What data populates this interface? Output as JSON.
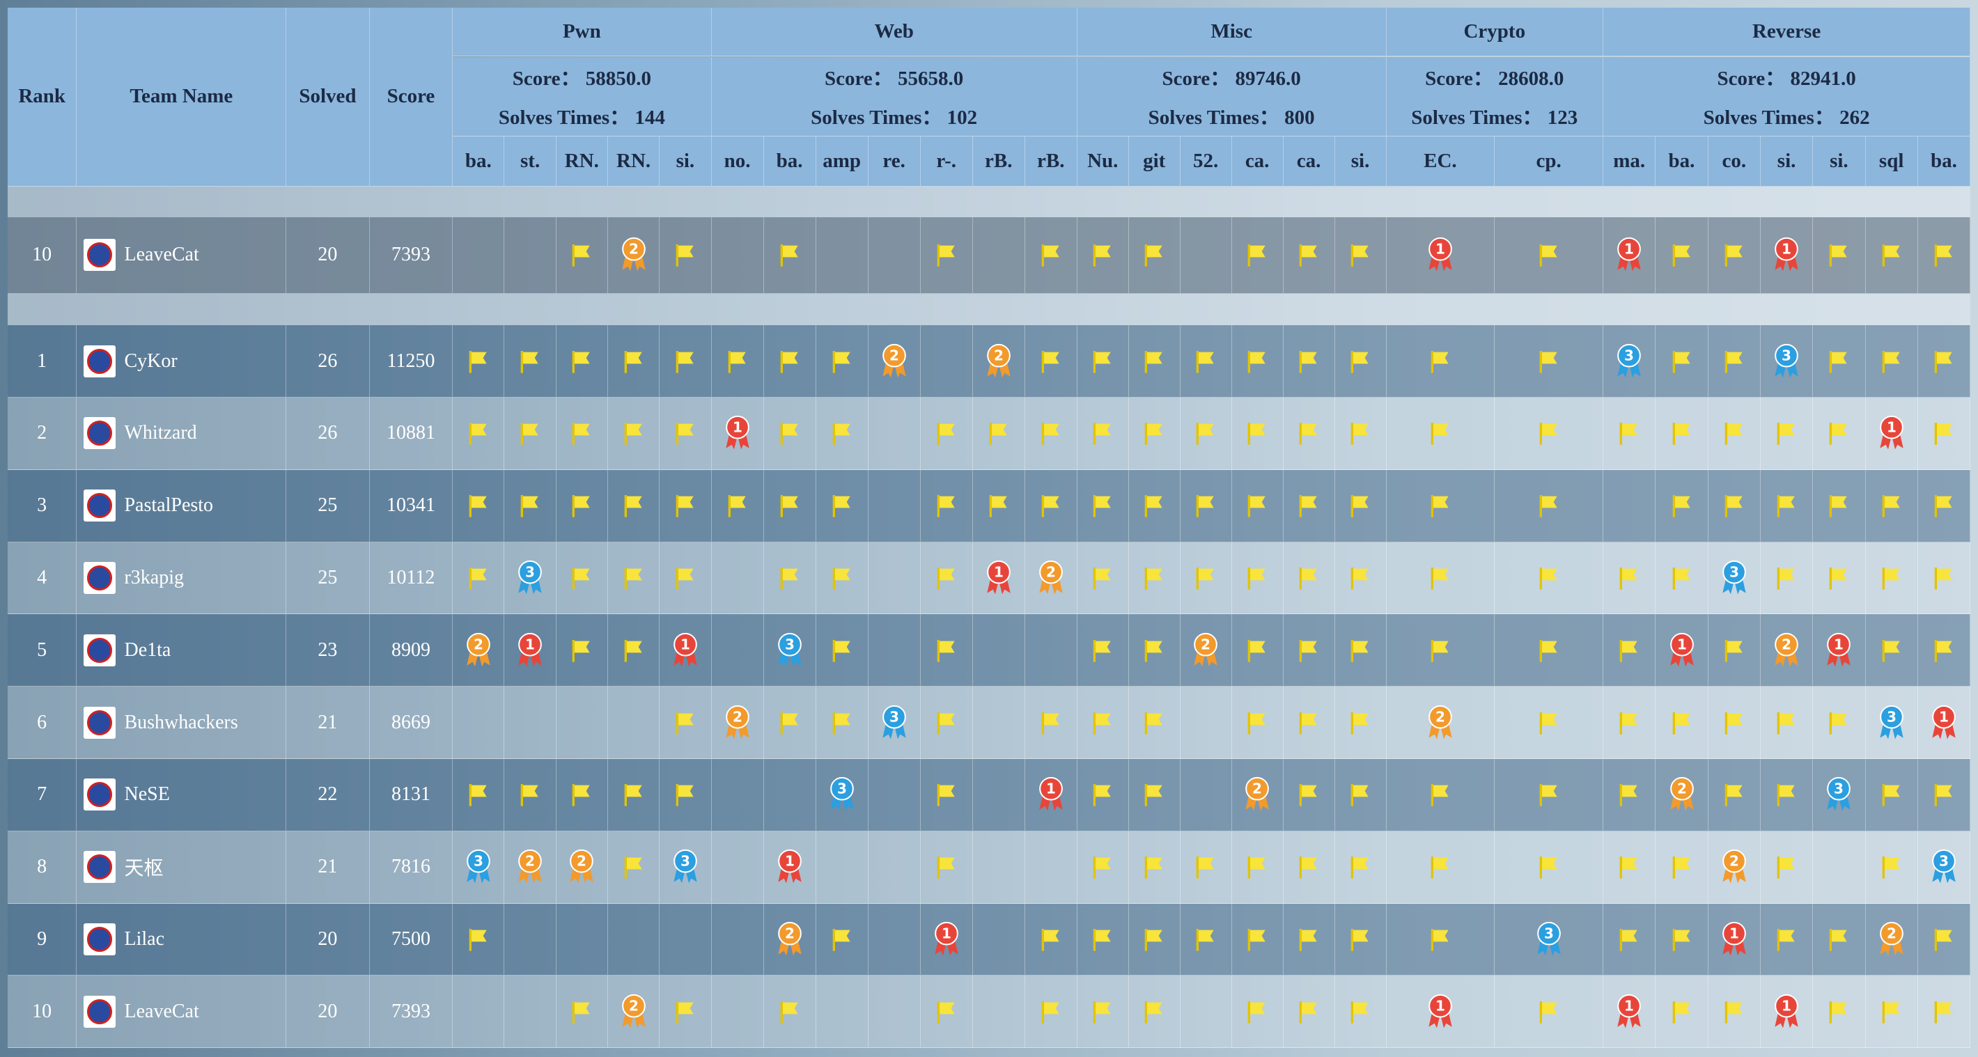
{
  "header": {
    "rank": "Rank",
    "team": "Team Name",
    "solved": "Solved",
    "score": "Score"
  },
  "categories": [
    {
      "name": "Pwn",
      "score": "Score：  58850.0",
      "solves": "Solves Times：  144",
      "challenges": [
        "ba.",
        "st.",
        "RN.",
        "RN.",
        "si."
      ]
    },
    {
      "name": "Web",
      "score": "Score：  55658.0",
      "solves": "Solves Times：  102",
      "challenges": [
        "no.",
        "ba.",
        "amp",
        "re.",
        "r-.",
        "rB.",
        "rB."
      ]
    },
    {
      "name": "Misc",
      "score": "Score：  89746.0",
      "solves": "Solves Times：  800",
      "challenges": [
        "Nu.",
        "git",
        "52.",
        "ca.",
        "ca.",
        "si."
      ]
    },
    {
      "name": "Crypto",
      "score": "Score：  28608.0",
      "solves": "Solves Times：  123",
      "challenges": [
        "EC.",
        "cp."
      ]
    },
    {
      "name": "Reverse",
      "score": "Score：  82941.0",
      "solves": "Solves Times：  262",
      "challenges": [
        "ma.",
        "ba.",
        "co.",
        "si.",
        "si.",
        "sql",
        "ba."
      ]
    }
  ],
  "pinned": {
    "rank": 10,
    "team": "LeaveCat",
    "solved": 20,
    "score": 7393,
    "cells": [
      null,
      null,
      "flag",
      2,
      "flag",
      null,
      "flag",
      null,
      null,
      "flag",
      null,
      "flag",
      "flag",
      "flag",
      null,
      "flag",
      "flag",
      "flag",
      1,
      "flag",
      1,
      "flag",
      "flag",
      1,
      "flag",
      "flag",
      "flag"
    ]
  },
  "rows": [
    {
      "rank": 1,
      "team": "CyKor",
      "solved": 26,
      "score": 11250,
      "cells": [
        "flag",
        "flag",
        "flag",
        "flag",
        "flag",
        "flag",
        "flag",
        "flag",
        2,
        null,
        2,
        "flag",
        "flag",
        "flag",
        "flag",
        "flag",
        "flag",
        "flag",
        "flag",
        "flag",
        3,
        "flag",
        "flag",
        3,
        "flag",
        "flag",
        "flag"
      ]
    },
    {
      "rank": 2,
      "team": "Whitzard",
      "solved": 26,
      "score": 10881,
      "cells": [
        "flag",
        "flag",
        "flag",
        "flag",
        "flag",
        1,
        "flag",
        "flag",
        null,
        "flag",
        "flag",
        "flag",
        "flag",
        "flag",
        "flag",
        "flag",
        "flag",
        "flag",
        "flag",
        "flag",
        "flag",
        "flag",
        "flag",
        "flag",
        "flag",
        1,
        "flag"
      ]
    },
    {
      "rank": 3,
      "team": "PastalPesto",
      "solved": 25,
      "score": 10341,
      "cells": [
        "flag",
        "flag",
        "flag",
        "flag",
        "flag",
        "flag",
        "flag",
        "flag",
        null,
        "flag",
        "flag",
        "flag",
        "flag",
        "flag",
        "flag",
        "flag",
        "flag",
        "flag",
        "flag",
        "flag",
        null,
        "flag",
        "flag",
        "flag",
        "flag",
        "flag",
        "flag"
      ]
    },
    {
      "rank": 4,
      "team": "r3kapig",
      "solved": 25,
      "score": 10112,
      "cells": [
        "flag",
        3,
        "flag",
        "flag",
        "flag",
        null,
        "flag",
        "flag",
        null,
        "flag",
        1,
        2,
        "flag",
        "flag",
        "flag",
        "flag",
        "flag",
        "flag",
        "flag",
        "flag",
        "flag",
        "flag",
        3,
        "flag",
        "flag",
        "flag",
        "flag"
      ]
    },
    {
      "rank": 5,
      "team": "De1ta",
      "solved": 23,
      "score": 8909,
      "cells": [
        2,
        1,
        "flag",
        "flag",
        1,
        null,
        3,
        "flag",
        null,
        "flag",
        null,
        null,
        "flag",
        "flag",
        2,
        "flag",
        "flag",
        "flag",
        "flag",
        "flag",
        "flag",
        1,
        "flag",
        2,
        1,
        "flag",
        "flag"
      ]
    },
    {
      "rank": 6,
      "team": "Bushwhackers",
      "solved": 21,
      "score": 8669,
      "cells": [
        null,
        null,
        null,
        null,
        "flag",
        2,
        "flag",
        "flag",
        3,
        "flag",
        null,
        "flag",
        "flag",
        "flag",
        null,
        "flag",
        "flag",
        "flag",
        2,
        "flag",
        "flag",
        "flag",
        "flag",
        "flag",
        "flag",
        3,
        1
      ]
    },
    {
      "rank": 7,
      "team": "NeSE",
      "solved": 22,
      "score": 8131,
      "cells": [
        "flag",
        "flag",
        "flag",
        "flag",
        "flag",
        null,
        null,
        3,
        null,
        "flag",
        null,
        1,
        "flag",
        "flag",
        null,
        2,
        "flag",
        "flag",
        "flag",
        "flag",
        "flag",
        2,
        "flag",
        "flag",
        3,
        "flag",
        "flag"
      ]
    },
    {
      "rank": 8,
      "team": "天枢",
      "solved": 21,
      "score": 7816,
      "cells": [
        3,
        2,
        2,
        "flag",
        3,
        null,
        1,
        null,
        null,
        "flag",
        null,
        null,
        "flag",
        "flag",
        "flag",
        "flag",
        "flag",
        "flag",
        "flag",
        "flag",
        "flag",
        "flag",
        2,
        "flag",
        null,
        "flag",
        3
      ]
    },
    {
      "rank": 9,
      "team": "Lilac",
      "solved": 20,
      "score": 7500,
      "cells": [
        "flag",
        null,
        null,
        null,
        null,
        null,
        2,
        "flag",
        null,
        1,
        null,
        "flag",
        "flag",
        "flag",
        "flag",
        "flag",
        "flag",
        "flag",
        "flag",
        3,
        "flag",
        "flag",
        1,
        "flag",
        "flag",
        2,
        "flag"
      ]
    },
    {
      "rank": 10,
      "team": "LeaveCat",
      "solved": 20,
      "score": 7393,
      "cells": [
        null,
        null,
        "flag",
        2,
        "flag",
        null,
        "flag",
        null,
        null,
        "flag",
        null,
        "flag",
        "flag",
        "flag",
        null,
        "flag",
        "flag",
        "flag",
        1,
        "flag",
        1,
        "flag",
        "flag",
        1,
        "flag",
        "flag",
        "flag"
      ]
    }
  ]
}
